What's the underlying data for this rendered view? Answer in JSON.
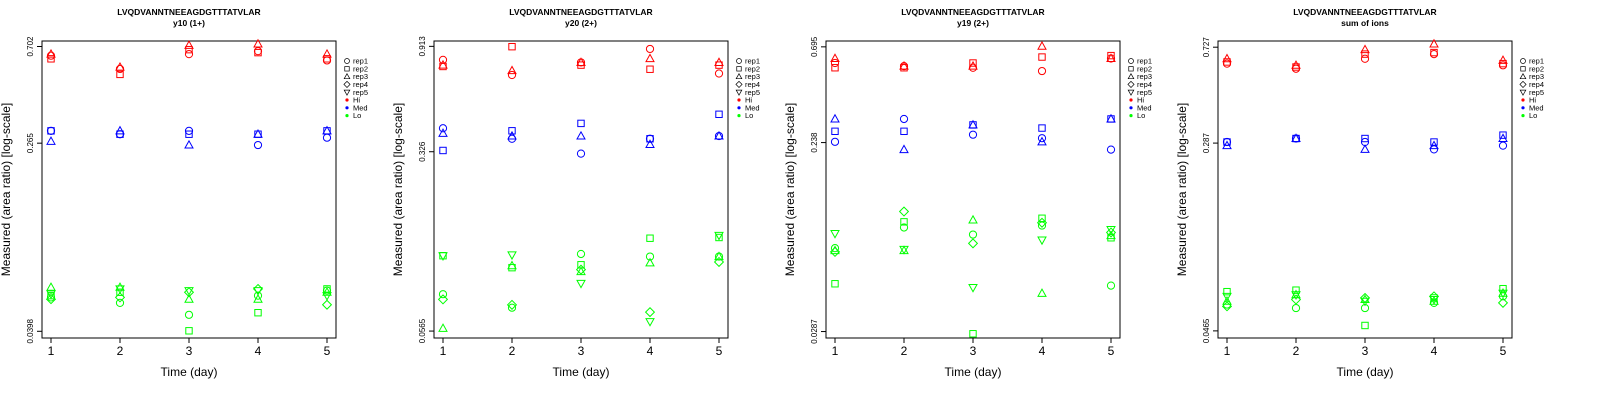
{
  "colors": {
    "Hi": "#ff0000",
    "Med": "#0000ff",
    "Lo": "#00ff00",
    "axis": "#000000"
  },
  "legend_entries": [
    {
      "label": "rep1",
      "kind": "rep",
      "shape": "circle"
    },
    {
      "label": "rep2",
      "kind": "rep",
      "shape": "square"
    },
    {
      "label": "rep3",
      "kind": "rep",
      "shape": "triangle"
    },
    {
      "label": "rep4",
      "kind": "rep",
      "shape": "diamond"
    },
    {
      "label": "rep5",
      "kind": "rep",
      "shape": "down-triangle"
    },
    {
      "label": "Hi",
      "kind": "group",
      "color_key": "Hi"
    },
    {
      "label": "Med",
      "kind": "group",
      "color_key": "Med"
    },
    {
      "label": "Lo",
      "kind": "group",
      "color_key": "Lo"
    }
  ],
  "chart_data": [
    {
      "type": "scatter",
      "title": "LVQDVANNTNEEAGDGTTTATVLAR",
      "subtitle": "y10 (1+)",
      "xlabel": "Time (day)",
      "ylabel": "Measured (area ratio) [log-scale]",
      "y_scale": "log",
      "xticks": [
        "1",
        "2",
        "3",
        "4",
        "5"
      ],
      "yticks": [
        "0.0398",
        "0.265",
        "0.702"
      ],
      "yticks_values": [
        0.0398,
        0.265,
        0.702
      ],
      "ylim": [
        0.0372,
        0.742
      ],
      "series": [
        {
          "group": "Hi",
          "rep": "rep1",
          "values": [
            0.64,
            0.56,
            0.65,
            0.67,
            0.61
          ]
        },
        {
          "group": "Hi",
          "rep": "rep2",
          "values": [
            0.62,
            0.53,
            0.68,
            0.66,
            0.62
          ]
        },
        {
          "group": "Hi",
          "rep": "rep3",
          "values": [
            0.65,
            0.57,
            0.71,
            0.72,
            0.65
          ]
        },
        {
          "group": "Med",
          "rep": "rep1",
          "values": [
            0.3,
            0.29,
            0.3,
            0.26,
            0.28
          ]
        },
        {
          "group": "Med",
          "rep": "rep2",
          "values": [
            0.3,
            0.29,
            0.29,
            0.29,
            0.3
          ]
        },
        {
          "group": "Med",
          "rep": "rep3",
          "values": [
            0.27,
            0.3,
            0.26,
            0.29,
            0.3
          ]
        },
        {
          "group": "Lo",
          "rep": "rep1",
          "values": [
            0.056,
            0.053,
            0.047,
            0.057,
            0.06
          ]
        },
        {
          "group": "Lo",
          "rep": "rep2",
          "values": [
            0.057,
            0.059,
            0.04,
            0.048,
            0.061
          ]
        },
        {
          "group": "Lo",
          "rep": "rep3",
          "values": [
            0.062,
            0.062,
            0.055,
            0.055,
            0.059
          ]
        },
        {
          "group": "Lo",
          "rep": "rep4",
          "values": [
            0.055,
            0.056,
            0.059,
            0.061,
            0.052
          ]
        },
        {
          "group": "Lo",
          "rep": "rep5",
          "values": [
            0.058,
            0.061,
            0.06,
            0.06,
            0.057
          ]
        }
      ]
    },
    {
      "type": "scatter",
      "title": "LVQDVANNTNEEAGDGTTTATVLAR",
      "subtitle": "y20 (2+)",
      "xlabel": "Time (day)",
      "ylabel": "Measured (area ratio) [log-scale]",
      "y_scale": "log",
      "xticks": [
        "1",
        "2",
        "3",
        "4",
        "5"
      ],
      "yticks": [
        "0.0565",
        "0.326",
        "0.913"
      ],
      "yticks_values": [
        0.0565,
        0.326,
        0.913
      ],
      "ylim": [
        0.0528,
        0.962
      ],
      "series": [
        {
          "group": "Hi",
          "rep": "rep1",
          "values": [
            0.8,
            0.69,
            0.78,
            0.89,
            0.7
          ]
        },
        {
          "group": "Hi",
          "rep": "rep2",
          "values": [
            0.75,
            0.91,
            0.76,
            0.73,
            0.76
          ]
        },
        {
          "group": "Hi",
          "rep": "rep3",
          "values": [
            0.76,
            0.72,
            0.78,
            0.81,
            0.78
          ]
        },
        {
          "group": "Med",
          "rep": "rep1",
          "values": [
            0.41,
            0.37,
            0.32,
            0.37,
            0.38
          ]
        },
        {
          "group": "Med",
          "rep": "rep2",
          "values": [
            0.33,
            0.4,
            0.43,
            0.37,
            0.47
          ]
        },
        {
          "group": "Med",
          "rep": "rep3",
          "values": [
            0.39,
            0.38,
            0.38,
            0.35,
            0.38
          ]
        },
        {
          "group": "Lo",
          "rep": "rep1",
          "values": [
            0.081,
            0.071,
            0.12,
            0.117,
            0.117
          ]
        },
        {
          "group": "Lo",
          "rep": "rep2",
          "values": [
            0.118,
            0.105,
            0.108,
            0.14,
            0.141
          ]
        },
        {
          "group": "Lo",
          "rep": "rep3",
          "values": [
            0.058,
            0.107,
            0.101,
            0.11,
            0.117
          ]
        },
        {
          "group": "Lo",
          "rep": "rep4",
          "values": [
            0.077,
            0.073,
            0.103,
            0.068,
            0.111
          ]
        },
        {
          "group": "Lo",
          "rep": "rep5",
          "values": [
            0.118,
            0.119,
            0.09,
            0.062,
            0.144
          ]
        }
      ]
    },
    {
      "type": "scatter",
      "title": "LVQDVANNTNEEAGDGTTTATVLAR",
      "subtitle": "y19 (2+)",
      "xlabel": "Time (day)",
      "ylabel": "Measured (area ratio) [log-scale]",
      "y_scale": "log",
      "xticks": [
        "1",
        "2",
        "3",
        "4",
        "5"
      ],
      "yticks": [
        "0.0287",
        "0.238",
        "0.695"
      ],
      "yticks_values": [
        0.0287,
        0.238,
        0.695
      ],
      "ylim": [
        0.0267,
        0.742
      ],
      "series": [
        {
          "group": "Hi",
          "rep": "rep1",
          "values": [
            0.58,
            0.56,
            0.55,
            0.53,
            0.61
          ]
        },
        {
          "group": "Hi",
          "rep": "rep2",
          "values": [
            0.55,
            0.55,
            0.58,
            0.62,
            0.63
          ]
        },
        {
          "group": "Hi",
          "rep": "rep3",
          "values": [
            0.61,
            0.56,
            0.56,
            0.7,
            0.61
          ]
        },
        {
          "group": "Med",
          "rep": "rep1",
          "values": [
            0.24,
            0.31,
            0.26,
            0.25,
            0.22
          ]
        },
        {
          "group": "Med",
          "rep": "rep2",
          "values": [
            0.27,
            0.27,
            0.29,
            0.28,
            0.31
          ]
        },
        {
          "group": "Med",
          "rep": "rep3",
          "values": [
            0.31,
            0.22,
            0.29,
            0.24,
            0.31
          ]
        },
        {
          "group": "Lo",
          "rep": "rep1",
          "values": [
            0.073,
            0.092,
            0.085,
            0.094,
            0.048
          ]
        },
        {
          "group": "Lo",
          "rep": "rep2",
          "values": [
            0.049,
            0.098,
            0.028,
            0.102,
            0.082
          ]
        },
        {
          "group": "Lo",
          "rep": "rep3",
          "values": [
            0.071,
            0.071,
            0.1,
            0.044,
            0.084
          ]
        },
        {
          "group": "Lo",
          "rep": "rep4",
          "values": [
            0.07,
            0.11,
            0.077,
            0.097,
            0.087
          ]
        },
        {
          "group": "Lo",
          "rep": "rep5",
          "values": [
            0.086,
            0.072,
            0.047,
            0.08,
            0.09
          ]
        }
      ]
    },
    {
      "type": "scatter",
      "title": "LVQDVANNTNEEAGDGTTTATVLAR",
      "subtitle": "sum of ions",
      "xlabel": "Time (day)",
      "ylabel": "Measured (area ratio) [log-scale]",
      "y_scale": "log",
      "xticks": [
        "1",
        "2",
        "3",
        "4",
        "5"
      ],
      "yticks": [
        "0.0465",
        "0.287",
        "0.727"
      ],
      "yticks_values": [
        0.0465,
        0.287,
        0.727
      ],
      "ylim": [
        0.0434,
        0.772
      ],
      "series": [
        {
          "group": "Hi",
          "rep": "rep1",
          "values": [
            0.62,
            0.59,
            0.65,
            0.68,
            0.61
          ]
        },
        {
          "group": "Hi",
          "rep": "rep2",
          "values": [
            0.63,
            0.6,
            0.68,
            0.69,
            0.62
          ]
        },
        {
          "group": "Hi",
          "rep": "rep3",
          "values": [
            0.65,
            0.61,
            0.71,
            0.75,
            0.64
          ]
        },
        {
          "group": "Med",
          "rep": "rep1",
          "values": [
            0.29,
            0.3,
            0.29,
            0.27,
            0.28
          ]
        },
        {
          "group": "Med",
          "rep": "rep2",
          "values": [
            0.29,
            0.3,
            0.3,
            0.29,
            0.31
          ]
        },
        {
          "group": "Med",
          "rep": "rep3",
          "values": [
            0.28,
            0.3,
            0.27,
            0.28,
            0.3
          ]
        },
        {
          "group": "Lo",
          "rep": "rep1",
          "values": [
            0.06,
            0.058,
            0.058,
            0.061,
            0.065
          ]
        },
        {
          "group": "Lo",
          "rep": "rep2",
          "values": [
            0.068,
            0.069,
            0.049,
            0.064,
            0.07
          ]
        },
        {
          "group": "Lo",
          "rep": "rep3",
          "values": [
            0.062,
            0.066,
            0.063,
            0.062,
            0.067
          ]
        },
        {
          "group": "Lo",
          "rep": "rep4",
          "values": [
            0.059,
            0.063,
            0.064,
            0.065,
            0.061
          ]
        },
        {
          "group": "Lo",
          "rep": "rep5",
          "values": [
            0.065,
            0.066,
            0.062,
            0.063,
            0.067
          ]
        }
      ]
    }
  ]
}
